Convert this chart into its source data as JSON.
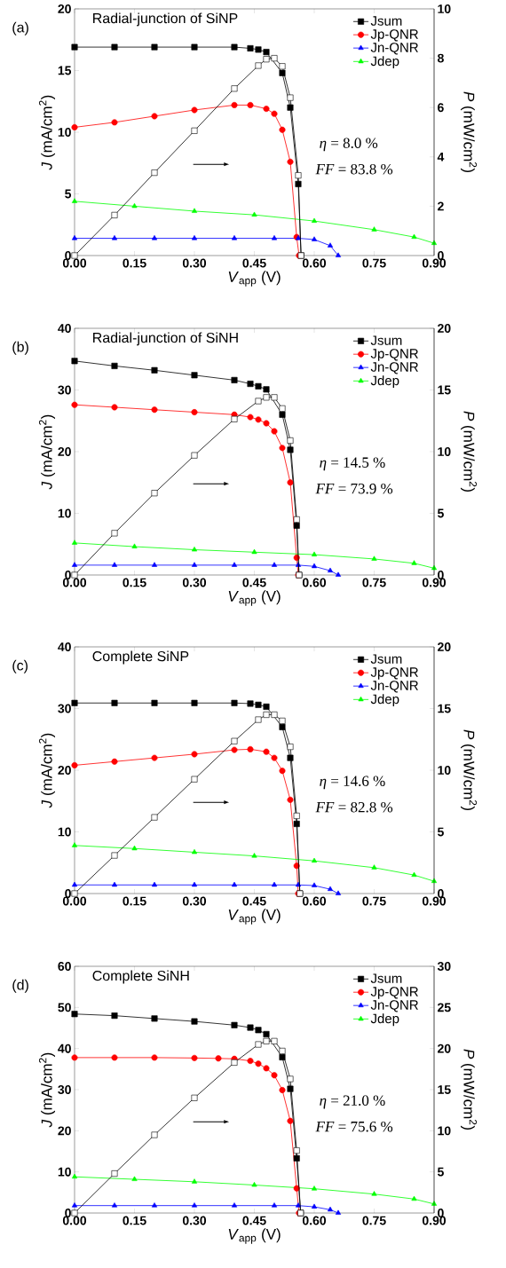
{
  "chart_data": [
    {
      "type": "line",
      "title": "Radial-junction of SiNP",
      "xlabel": "*V*$_{app}$ (V)",
      "ylabel": "*J* (mA/cm$^{2}$)",
      "y2label": "*P* (mW/cm$^{2}$)",
      "annotations": [
        "(a)",
        "*η* = 8.0 %",
        "*FF* = 83.8 %"
      ],
      "legend": "top right",
      "xlim": [
        0,
        0.9
      ],
      "xticks": [
        {
          "value": 0,
          "label": "0.00"
        },
        {
          "value": 0.15,
          "label": "0.15"
        },
        {
          "value": 0.3,
          "label": "0.30"
        },
        {
          "value": 0.45,
          "label": "0.45"
        },
        {
          "value": 0.6,
          "label": "0.60"
        },
        {
          "value": 0.75,
          "label": "0.75"
        },
        {
          "value": 0.9,
          "label": "0.90"
        }
      ],
      "ylim": [
        0,
        20
      ],
      "yticks": [
        0,
        5,
        10,
        15,
        20
      ],
      "y2lim": [
        0,
        10
      ],
      "y2ticks": [
        0,
        2,
        4,
        6,
        8,
        10
      ],
      "series": [
        {
          "name": "Jsum",
          "color": "#000000",
          "marker": "square",
          "x": [
            0,
            0.1,
            0.2,
            0.3,
            0.4,
            0.44,
            0.46,
            0.48,
            0.52,
            0.54,
            0.56,
            0.567
          ],
          "values": [
            16.9,
            16.9,
            16.9,
            16.9,
            16.9,
            16.8,
            16.7,
            16.5,
            14.8,
            12.0,
            5.8,
            0
          ]
        },
        {
          "name": "Jp-QNR",
          "color": "#ff0000",
          "marker": "circle",
          "x": [
            0,
            0.1,
            0.2,
            0.3,
            0.4,
            0.44,
            0.48,
            0.5,
            0.52,
            0.54,
            0.556,
            0.562
          ],
          "values": [
            10.4,
            10.8,
            11.3,
            11.8,
            12.2,
            12.2,
            11.9,
            11.5,
            10.2,
            7.6,
            1.5,
            0
          ]
        },
        {
          "name": "Jn-QNR",
          "color": "#0000ff",
          "marker": "triangle",
          "x": [
            0,
            0.1,
            0.2,
            0.3,
            0.4,
            0.5,
            0.56,
            0.6,
            0.64,
            0.66
          ],
          "values": [
            1.4,
            1.4,
            1.4,
            1.4,
            1.4,
            1.4,
            1.4,
            1.3,
            0.8,
            0
          ]
        },
        {
          "name": "Jdep",
          "color": "#00ff00",
          "marker": "triangle",
          "x": [
            0,
            0.15,
            0.3,
            0.45,
            0.6,
            0.75,
            0.85,
            0.9
          ],
          "values": [
            4.4,
            4.0,
            3.6,
            3.3,
            2.8,
            2.1,
            1.5,
            1.0
          ]
        },
        {
          "color": "#000000",
          "marker": "square",
          "axis": "y2",
          "x": [
            0,
            0.1,
            0.2,
            0.3,
            0.4,
            0.46,
            0.48,
            0.5,
            0.52,
            0.54,
            0.56,
            0.567
          ],
          "values": [
            0,
            1.64,
            3.36,
            5.06,
            6.77,
            7.7,
            7.96,
            8.0,
            7.67,
            6.4,
            3.25,
            0
          ]
        }
      ]
    },
    {
      "type": "line",
      "title": "Radial-junction of SiNH",
      "xlabel": "*V*$_{app}$ (V)",
      "ylabel": "*J* (mA/cm$^{2}$)",
      "y2label": "*P* (mW/cm$^{2}$)",
      "annotations": [
        "(b)",
        "*η* = 14.5 %",
        "*FF* = 73.9 %"
      ],
      "legend": "top right",
      "xlim": [
        0,
        0.9
      ],
      "xticks": [
        {
          "value": 0,
          "label": "0.00"
        },
        {
          "value": 0.15,
          "label": "0.15"
        },
        {
          "value": 0.3,
          "label": "0.30"
        },
        {
          "value": 0.45,
          "label": "0.45"
        },
        {
          "value": 0.6,
          "label": "0.60"
        },
        {
          "value": 0.75,
          "label": "0.75"
        },
        {
          "value": 0.9,
          "label": "0.90"
        }
      ],
      "ylim": [
        0,
        40
      ],
      "yticks": [
        0,
        10,
        20,
        30,
        40
      ],
      "y2lim": [
        0,
        20
      ],
      "y2ticks": [
        0,
        5,
        10,
        15,
        20
      ],
      "series": [
        {
          "name": "Jsum",
          "color": "#000000",
          "marker": "square",
          "x": [
            0,
            0.1,
            0.2,
            0.3,
            0.4,
            0.44,
            0.46,
            0.48,
            0.52,
            0.54,
            0.556,
            0.562
          ],
          "values": [
            34.7,
            33.9,
            33.2,
            32.4,
            31.6,
            31.0,
            30.6,
            30.1,
            26.0,
            20.3,
            8.0,
            0
          ]
        },
        {
          "name": "Jp-QNR",
          "color": "#ff0000",
          "marker": "circle",
          "x": [
            0,
            0.1,
            0.2,
            0.3,
            0.4,
            0.44,
            0.46,
            0.48,
            0.5,
            0.52,
            0.54,
            0.556,
            0.56
          ],
          "values": [
            27.6,
            27.2,
            26.8,
            26.4,
            26.0,
            25.6,
            25.2,
            24.6,
            23.3,
            20.6,
            15.0,
            2.8,
            0
          ]
        },
        {
          "name": "Jn-QNR",
          "color": "#0000ff",
          "marker": "triangle",
          "x": [
            0,
            0.1,
            0.2,
            0.3,
            0.4,
            0.5,
            0.56,
            0.6,
            0.64,
            0.66
          ],
          "values": [
            1.6,
            1.6,
            1.6,
            1.6,
            1.6,
            1.6,
            1.6,
            1.4,
            0.7,
            0
          ]
        },
        {
          "name": "Jdep",
          "color": "#00ff00",
          "marker": "triangle",
          "x": [
            0,
            0.15,
            0.3,
            0.45,
            0.6,
            0.75,
            0.85,
            0.9
          ],
          "values": [
            5.2,
            4.6,
            4.1,
            3.7,
            3.3,
            2.6,
            1.9,
            1.1
          ]
        },
        {
          "color": "#000000",
          "marker": "square",
          "axis": "y2",
          "x": [
            0,
            0.1,
            0.2,
            0.3,
            0.4,
            0.46,
            0.48,
            0.5,
            0.52,
            0.54,
            0.556,
            0.562
          ],
          "values": [
            0,
            3.39,
            6.64,
            9.7,
            12.64,
            14.1,
            14.4,
            14.4,
            13.5,
            10.9,
            4.5,
            0
          ]
        }
      ]
    },
    {
      "type": "line",
      "title": "Complete SiNP",
      "xlabel": "*V*$_{app}$ (V)",
      "ylabel": "*J* (mA/cm$^{2}$)",
      "y2label": "*P* (mW/cm$^{2}$)",
      "annotations": [
        "(c)",
        "*η* = 14.6 %",
        "*FF* = 82.8 %"
      ],
      "legend": "top right",
      "xlim": [
        0,
        0.9
      ],
      "xticks": [
        {
          "value": 0,
          "label": "0.00"
        },
        {
          "value": 0.15,
          "label": "0.15"
        },
        {
          "value": 0.3,
          "label": "0.30"
        },
        {
          "value": 0.45,
          "label": "0.45"
        },
        {
          "value": 0.6,
          "label": "0.60"
        },
        {
          "value": 0.75,
          "label": "0.75"
        },
        {
          "value": 0.9,
          "label": "0.90"
        }
      ],
      "ylim": [
        0,
        40
      ],
      "yticks": [
        0,
        10,
        20,
        30,
        40
      ],
      "y2lim": [
        0,
        20
      ],
      "y2ticks": [
        0,
        5,
        10,
        15,
        20
      ],
      "series": [
        {
          "name": "Jsum",
          "color": "#000000",
          "marker": "square",
          "x": [
            0,
            0.1,
            0.2,
            0.3,
            0.4,
            0.44,
            0.46,
            0.48,
            0.52,
            0.54,
            0.556,
            0.564
          ],
          "values": [
            30.9,
            30.9,
            30.9,
            30.9,
            30.9,
            30.8,
            30.6,
            30.3,
            27.0,
            22.0,
            11.3,
            0
          ]
        },
        {
          "name": "Jp-QNR",
          "color": "#ff0000",
          "marker": "circle",
          "x": [
            0,
            0.1,
            0.2,
            0.3,
            0.4,
            0.44,
            0.48,
            0.5,
            0.52,
            0.54,
            0.556,
            0.56
          ],
          "values": [
            20.8,
            21.4,
            22.0,
            22.6,
            23.3,
            23.4,
            23.0,
            22.0,
            19.9,
            15.2,
            4.5,
            0
          ]
        },
        {
          "name": "Jn-QNR",
          "color": "#0000ff",
          "marker": "triangle",
          "x": [
            0,
            0.1,
            0.2,
            0.3,
            0.4,
            0.5,
            0.56,
            0.6,
            0.64,
            0.66
          ],
          "values": [
            1.4,
            1.4,
            1.4,
            1.4,
            1.4,
            1.4,
            1.4,
            1.3,
            0.7,
            0
          ]
        },
        {
          "name": "Jdep",
          "color": "#00ff00",
          "marker": "triangle",
          "x": [
            0,
            0.15,
            0.3,
            0.45,
            0.6,
            0.75,
            0.85,
            0.9
          ],
          "values": [
            7.8,
            7.3,
            6.7,
            6.1,
            5.3,
            4.2,
            3.0,
            2.0
          ]
        },
        {
          "color": "#000000",
          "marker": "square",
          "axis": "y2",
          "x": [
            0,
            0.1,
            0.2,
            0.3,
            0.4,
            0.46,
            0.48,
            0.5,
            0.52,
            0.54,
            0.556,
            0.564
          ],
          "values": [
            0,
            3.09,
            6.18,
            9.27,
            12.36,
            14.1,
            14.5,
            14.5,
            14.0,
            11.9,
            6.3,
            0
          ]
        }
      ]
    },
    {
      "type": "line",
      "title": "Complete SiNH",
      "xlabel": "*V*$_{app}$ (V)",
      "ylabel": "*J* (mA/cm$^{2}$)",
      "y2label": "*P* (mW/cm$^{2}$)",
      "annotations": [
        "(d)",
        "*η* = 21.0 %",
        "*FF* = 75.6 %"
      ],
      "legend": "top right",
      "xlim": [
        0,
        0.9
      ],
      "xticks": [
        {
          "value": 0,
          "label": "0.00"
        },
        {
          "value": 0.15,
          "label": "0.15"
        },
        {
          "value": 0.3,
          "label": "0.30"
        },
        {
          "value": 0.45,
          "label": "0.45"
        },
        {
          "value": 0.6,
          "label": "0.60"
        },
        {
          "value": 0.75,
          "label": "0.75"
        },
        {
          "value": 0.9,
          "label": "0.90"
        }
      ],
      "ylim": [
        0,
        60
      ],
      "yticks": [
        0,
        10,
        20,
        30,
        40,
        50,
        60
      ],
      "y2lim": [
        0,
        30
      ],
      "y2ticks": [
        0,
        5,
        10,
        15,
        20,
        25,
        30
      ],
      "series": [
        {
          "name": "Jsum",
          "color": "#000000",
          "marker": "square",
          "x": [
            0,
            0.1,
            0.2,
            0.3,
            0.4,
            0.44,
            0.46,
            0.48,
            0.52,
            0.54,
            0.556,
            0.566
          ],
          "values": [
            48.4,
            48.0,
            47.3,
            46.6,
            45.7,
            45.1,
            44.5,
            43.5,
            37.9,
            30.2,
            13.3,
            0
          ]
        },
        {
          "name": "Jp-QNR",
          "color": "#ff0000",
          "marker": "circle",
          "x": [
            0,
            0.1,
            0.2,
            0.3,
            0.36,
            0.4,
            0.44,
            0.46,
            0.48,
            0.5,
            0.52,
            0.54,
            0.556,
            0.562
          ],
          "values": [
            37.8,
            37.8,
            37.8,
            37.7,
            37.6,
            37.5,
            37.0,
            36.3,
            35.2,
            33.5,
            29.9,
            22.4,
            6.0,
            0
          ]
        },
        {
          "name": "Jn-QNR",
          "color": "#0000ff",
          "marker": "triangle",
          "x": [
            0,
            0.1,
            0.2,
            0.3,
            0.4,
            0.5,
            0.56,
            0.6,
            0.64,
            0.66
          ],
          "values": [
            1.8,
            1.8,
            1.8,
            1.8,
            1.8,
            1.8,
            1.8,
            1.5,
            0.8,
            0
          ]
        },
        {
          "name": "Jdep",
          "color": "#00ff00",
          "marker": "triangle",
          "x": [
            0,
            0.15,
            0.3,
            0.45,
            0.6,
            0.75,
            0.85,
            0.9
          ],
          "values": [
            8.8,
            8.2,
            7.6,
            6.8,
            5.9,
            4.6,
            3.4,
            2.2
          ]
        },
        {
          "color": "#000000",
          "marker": "square",
          "axis": "y2",
          "x": [
            0,
            0.1,
            0.2,
            0.3,
            0.4,
            0.46,
            0.48,
            0.5,
            0.52,
            0.54,
            0.556,
            0.566
          ],
          "values": [
            0,
            4.8,
            9.5,
            14.0,
            18.3,
            20.5,
            20.9,
            20.9,
            19.7,
            16.3,
            7.6,
            0
          ]
        }
      ]
    }
  ]
}
